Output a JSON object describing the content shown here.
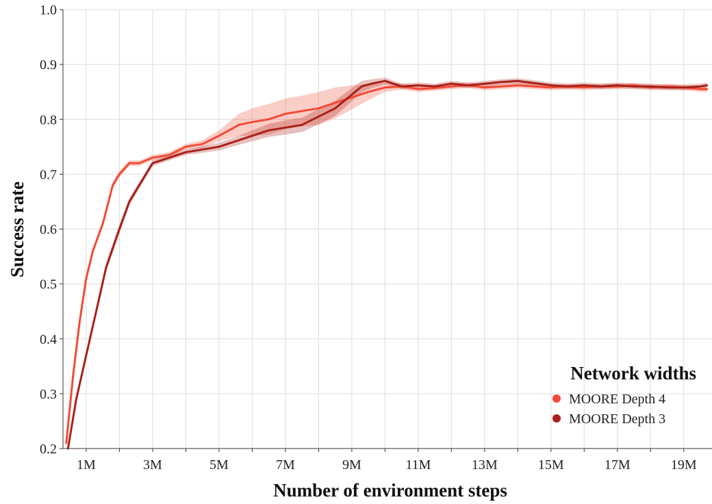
{
  "chart_data": {
    "type": "line",
    "title": "",
    "xlabel": "Number of environment steps",
    "ylabel": "Success rate",
    "xlim": [
      0.3,
      19.85
    ],
    "ylim": [
      0.2,
      1.0
    ],
    "x_ticks": [
      1,
      3,
      5,
      7,
      9,
      11,
      13,
      15,
      17,
      19
    ],
    "x_tick_labels": [
      "1M",
      "3M",
      "5M",
      "7M",
      "9M",
      "11M",
      "13M",
      "15M",
      "17M",
      "19M"
    ],
    "y_ticks": [
      0.2,
      0.3,
      0.4,
      0.5,
      0.6,
      0.7,
      0.8,
      0.9,
      1.0
    ],
    "y_tick_labels": [
      "0.2",
      "0.3",
      "0.4",
      "0.5",
      "0.6",
      "0.7",
      "0.8",
      "0.9",
      "1.0"
    ],
    "grid": true,
    "legend": {
      "title": "Network widths",
      "position": "bottom-right"
    },
    "series": [
      {
        "name": "MOORE Depth 4",
        "color": "#f24a35",
        "band_color": "#f24a35",
        "x": [
          0.4,
          0.6,
          0.8,
          1.0,
          1.2,
          1.5,
          1.8,
          2.0,
          2.3,
          2.6,
          3.0,
          3.5,
          4.0,
          4.5,
          5.0,
          5.3,
          5.6,
          6.0,
          6.5,
          7.0,
          7.5,
          8.0,
          8.5,
          9.0,
          9.5,
          10.0,
          10.5,
          11.0,
          11.5,
          12.0,
          12.5,
          13.0,
          13.5,
          14.0,
          14.5,
          15.0,
          15.5,
          16.0,
          16.5,
          17.0,
          17.5,
          18.0,
          18.5,
          19.0,
          19.5,
          19.7
        ],
        "y": [
          0.21,
          0.33,
          0.43,
          0.51,
          0.56,
          0.61,
          0.68,
          0.7,
          0.72,
          0.72,
          0.73,
          0.735,
          0.75,
          0.755,
          0.77,
          0.78,
          0.79,
          0.795,
          0.8,
          0.81,
          0.815,
          0.82,
          0.83,
          0.84,
          0.85,
          0.858,
          0.86,
          0.855,
          0.857,
          0.86,
          0.862,
          0.858,
          0.86,
          0.862,
          0.86,
          0.858,
          0.86,
          0.858,
          0.86,
          0.86,
          0.862,
          0.858,
          0.86,
          0.858,
          0.855,
          0.855
        ],
        "band": [
          0.005,
          0.006,
          0.006,
          0.006,
          0.006,
          0.006,
          0.006,
          0.006,
          0.005,
          0.005,
          0.005,
          0.005,
          0.005,
          0.007,
          0.01,
          0.015,
          0.02,
          0.025,
          0.028,
          0.028,
          0.028,
          0.03,
          0.028,
          0.022,
          0.015,
          0.008,
          0.006,
          0.005,
          0.005,
          0.005,
          0.005,
          0.005,
          0.005,
          0.005,
          0.005,
          0.005,
          0.005,
          0.005,
          0.005,
          0.005,
          0.005,
          0.005,
          0.005,
          0.005,
          0.005,
          0.005
        ]
      },
      {
        "name": "MOORE Depth 3",
        "color": "#a8201a",
        "band_color": "#a8201a",
        "x": [
          0.45,
          0.7,
          1.0,
          1.3,
          1.6,
          2.0,
          2.3,
          2.6,
          3.0,
          3.5,
          4.0,
          4.5,
          5.0,
          5.5,
          6.0,
          6.5,
          7.0,
          7.5,
          8.0,
          8.5,
          9.0,
          9.3,
          9.6,
          10.0,
          10.5,
          11.0,
          11.5,
          12.0,
          12.5,
          13.0,
          13.5,
          14.0,
          14.5,
          15.0,
          15.5,
          16.0,
          16.5,
          17.0,
          17.5,
          18.0,
          18.5,
          19.0,
          19.5,
          19.7
        ],
        "y": [
          0.2,
          0.29,
          0.37,
          0.45,
          0.53,
          0.6,
          0.65,
          0.68,
          0.72,
          0.73,
          0.74,
          0.745,
          0.75,
          0.76,
          0.77,
          0.78,
          0.785,
          0.79,
          0.805,
          0.82,
          0.845,
          0.86,
          0.865,
          0.87,
          0.86,
          0.862,
          0.86,
          0.865,
          0.862,
          0.865,
          0.868,
          0.87,
          0.866,
          0.862,
          0.86,
          0.862,
          0.86,
          0.862,
          0.86,
          0.86,
          0.858,
          0.858,
          0.86,
          0.862
        ],
        "band": [
          0.005,
          0.006,
          0.006,
          0.008,
          0.008,
          0.008,
          0.007,
          0.006,
          0.005,
          0.005,
          0.005,
          0.006,
          0.007,
          0.008,
          0.01,
          0.012,
          0.013,
          0.013,
          0.014,
          0.014,
          0.012,
          0.01,
          0.008,
          0.006,
          0.005,
          0.005,
          0.005,
          0.005,
          0.005,
          0.005,
          0.005,
          0.005,
          0.005,
          0.005,
          0.005,
          0.005,
          0.005,
          0.005,
          0.005,
          0.005,
          0.005,
          0.005,
          0.005,
          0.005
        ]
      }
    ]
  }
}
